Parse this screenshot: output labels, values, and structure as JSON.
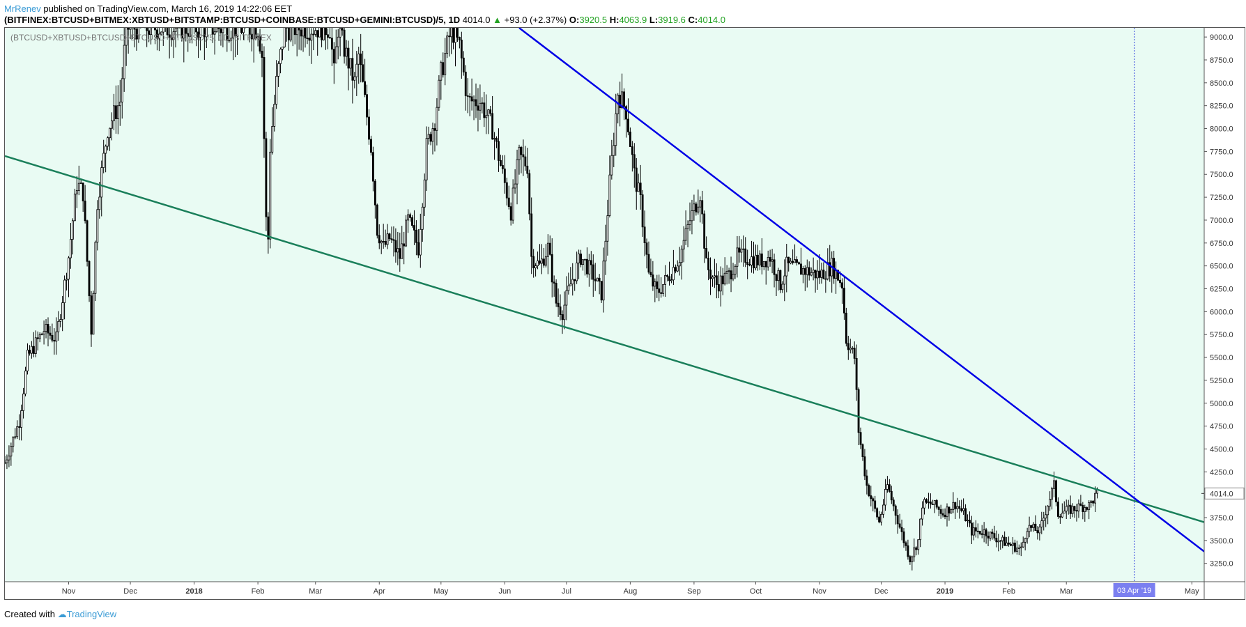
{
  "header": {
    "author": "MrRenev",
    "published": "published on TradingView.com, March 16, 2019 14:22:06 EET",
    "symbol": "(BITFINEX:BTCUSD+BITMEX:XBTUSD+BITSTAMP:BTCUSD+COINBASE:BTCUSD+GEMINI:BTCUSD)/5, 1D",
    "last": "4014.0",
    "change": "+93.0 (+2.37%)",
    "o_label": "O:",
    "o": "3920.5",
    "h_label": "H:",
    "h": "4063.9",
    "l_label": "L:",
    "l": "3919.6",
    "c_label": "C:",
    "c": "4014.0"
  },
  "footer": {
    "created_with": "Created with",
    "brand": "TradingView"
  },
  "chart_data": {
    "type": "candlestick",
    "series_title": "(BTCUSD+XBTUSD+BTCUSD+BTCUSD+BTCUSD)/5, 1D, BITFINEX",
    "ylim": [
      3050,
      9100
    ],
    "y_ticks": [
      3250,
      3500,
      3750,
      4000,
      4250,
      4500,
      4750,
      5000,
      5250,
      5500,
      5750,
      6000,
      6250,
      6500,
      6750,
      7000,
      7250,
      7500,
      7750,
      8000,
      8250,
      8500,
      8750,
      9000
    ],
    "x_start": "2017-10-01",
    "x_end": "2019-05-07",
    "x_ticks": [
      {
        "label": "Nov",
        "date": "2017-11-01"
      },
      {
        "label": "Dec",
        "date": "2017-12-01"
      },
      {
        "label": "2018",
        "date": "2018-01-01"
      },
      {
        "label": "Feb",
        "date": "2018-02-01"
      },
      {
        "label": "Mar",
        "date": "2018-03-01"
      },
      {
        "label": "Apr",
        "date": "2018-04-01"
      },
      {
        "label": "May",
        "date": "2018-05-01"
      },
      {
        "label": "Jun",
        "date": "2018-06-01"
      },
      {
        "label": "Jul",
        "date": "2018-07-01"
      },
      {
        "label": "Aug",
        "date": "2018-08-01"
      },
      {
        "label": "Sep",
        "date": "2018-09-01"
      },
      {
        "label": "Oct",
        "date": "2018-10-01"
      },
      {
        "label": "Nov",
        "date": "2018-11-01"
      },
      {
        "label": "Dec",
        "date": "2018-12-01"
      },
      {
        "label": "2019",
        "date": "2019-01-01"
      },
      {
        "label": "Feb",
        "date": "2019-02-01"
      },
      {
        "label": "Mar",
        "date": "2019-03-01"
      },
      {
        "label": "May",
        "date": "2019-05-01"
      }
    ],
    "last_price": 4014.0,
    "last_price_label": "4014.0",
    "marker_label": "03 Apr '19",
    "marker_date": "2019-04-03",
    "price_path": [
      [
        "2017-10-01",
        4350
      ],
      [
        "2017-10-08",
        4800
      ],
      [
        "2017-10-12",
        5500
      ],
      [
        "2017-10-20",
        5800
      ],
      [
        "2017-10-26",
        5700
      ],
      [
        "2017-11-01",
        6600
      ],
      [
        "2017-11-05",
        7400
      ],
      [
        "2017-11-08",
        7300
      ],
      [
        "2017-11-12",
        5800
      ],
      [
        "2017-11-15",
        7200
      ],
      [
        "2017-11-20",
        8000
      ],
      [
        "2017-11-26",
        8300
      ],
      [
        "2017-11-29",
        9100
      ],
      [
        "2017-12-31",
        9100
      ],
      [
        "2018-02-01",
        9100
      ],
      [
        "2018-02-03",
        8800
      ],
      [
        "2018-02-05",
        7000
      ],
      [
        "2018-02-06",
        6800
      ],
      [
        "2018-02-07",
        7800
      ],
      [
        "2018-02-10",
        8500
      ],
      [
        "2018-02-14",
        9100
      ],
      [
        "2018-03-08",
        9100
      ],
      [
        "2018-03-10",
        8600
      ],
      [
        "2018-03-12",
        9100
      ],
      [
        "2018-03-20",
        8500
      ],
      [
        "2018-03-22",
        8800
      ],
      [
        "2018-03-28",
        7800
      ],
      [
        "2018-03-31",
        6900
      ],
      [
        "2018-04-03",
        6700
      ],
      [
        "2018-04-06",
        6800
      ],
      [
        "2018-04-11",
        6600
      ],
      [
        "2018-04-15",
        7000
      ],
      [
        "2018-04-20",
        6700
      ],
      [
        "2018-04-24",
        7800
      ],
      [
        "2018-04-28",
        8100
      ],
      [
        "2018-05-01",
        8600
      ],
      [
        "2018-05-06",
        9100
      ],
      [
        "2018-05-10",
        8900
      ],
      [
        "2018-05-14",
        8300
      ],
      [
        "2018-05-20",
        8300
      ],
      [
        "2018-05-26",
        8000
      ],
      [
        "2018-05-31",
        7500
      ],
      [
        "2018-06-04",
        7100
      ],
      [
        "2018-06-08",
        7700
      ],
      [
        "2018-06-12",
        7600
      ],
      [
        "2018-06-14",
        6600
      ],
      [
        "2018-06-18",
        6500
      ],
      [
        "2018-06-22",
        6700
      ],
      [
        "2018-06-26",
        6100
      ],
      [
        "2018-06-29",
        6000
      ],
      [
        "2018-07-03",
        6300
      ],
      [
        "2018-07-08",
        6600
      ],
      [
        "2018-07-14",
        6400
      ],
      [
        "2018-07-18",
        6200
      ],
      [
        "2018-07-22",
        7400
      ],
      [
        "2018-07-26",
        8400
      ],
      [
        "2018-07-30",
        8200
      ],
      [
        "2018-08-03",
        7500
      ],
      [
        "2018-08-06",
        7200
      ],
      [
        "2018-08-10",
        6400
      ],
      [
        "2018-08-14",
        6200
      ],
      [
        "2018-08-20",
        6400
      ],
      [
        "2018-08-25",
        6600
      ],
      [
        "2018-08-30",
        7000
      ],
      [
        "2018-09-04",
        7300
      ],
      [
        "2018-09-07",
        6500
      ],
      [
        "2018-09-12",
        6300
      ],
      [
        "2018-09-18",
        6400
      ],
      [
        "2018-09-22",
        6600
      ],
      [
        "2018-09-26",
        6600
      ],
      [
        "2018-10-03",
        6550
      ],
      [
        "2018-10-08",
        6600
      ],
      [
        "2018-10-13",
        6300
      ],
      [
        "2018-10-16",
        6500
      ],
      [
        "2018-10-25",
        6450
      ],
      [
        "2018-11-01",
        6400
      ],
      [
        "2018-11-07",
        6500
      ],
      [
        "2018-11-12",
        6300
      ],
      [
        "2018-11-14",
        5700
      ],
      [
        "2018-11-18",
        5500
      ],
      [
        "2018-11-20",
        4700
      ],
      [
        "2018-11-24",
        4100
      ],
      [
        "2018-11-27",
        3900
      ],
      [
        "2018-11-30",
        3700
      ],
      [
        "2018-12-04",
        4100
      ],
      [
        "2018-12-08",
        3800
      ],
      [
        "2018-12-12",
        3500
      ],
      [
        "2018-12-15",
        3300
      ],
      [
        "2018-12-19",
        3500
      ],
      [
        "2018-12-21",
        3900
      ],
      [
        "2018-12-26",
        3900
      ],
      [
        "2018-12-31",
        3800
      ],
      [
        "2019-01-06",
        3900
      ],
      [
        "2019-01-10",
        3800
      ],
      [
        "2019-01-14",
        3600
      ],
      [
        "2019-01-20",
        3600
      ],
      [
        "2019-01-28",
        3500
      ],
      [
        "2019-02-02",
        3450
      ],
      [
        "2019-02-07",
        3400
      ],
      [
        "2019-02-10",
        3650
      ],
      [
        "2019-02-16",
        3600
      ],
      [
        "2019-02-20",
        3900
      ],
      [
        "2019-02-23",
        4100
      ],
      [
        "2019-02-25",
        3800
      ],
      [
        "2019-03-02",
        3830
      ],
      [
        "2019-03-08",
        3870
      ],
      [
        "2019-03-12",
        3880
      ],
      [
        "2019-03-16",
        4014
      ]
    ],
    "trendlines": [
      {
        "color": "#1a7f5a",
        "points": [
          [
            "2017-10-01",
            7700
          ],
          [
            "2019-05-07",
            3700
          ]
        ]
      },
      {
        "color": "#0000e6",
        "points": [
          [
            "2018-06-08",
            9100
          ],
          [
            "2019-05-07",
            3380
          ]
        ]
      }
    ]
  },
  "colors": {
    "plot_bg": "#e9fbf3",
    "candle": "#000000",
    "marker_line": "#3344dd",
    "marker_box": "#7b7ff0",
    "price_box": "#ffffff"
  }
}
